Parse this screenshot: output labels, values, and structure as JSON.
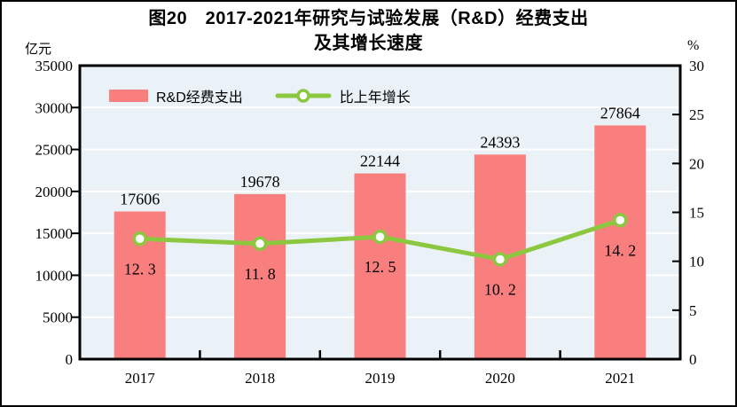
{
  "figure": {
    "title_line1": "图20　2017-2021年研究与试验发展（R&D）经费支出",
    "title_line2": "及其增长速度",
    "left_axis_unit": "亿元",
    "right_axis_unit": "%"
  },
  "legend": {
    "bar_label": "R&D经费支出",
    "line_label": "比上年增长"
  },
  "colors": {
    "bar": "#F97F7F",
    "line": "#8CC83F",
    "marker_fill": "#FFFFFF",
    "plot_bg": "#EAF1F7",
    "gridline": "#FFFFFF",
    "axis": "#000000",
    "text": "#000000",
    "page_bg": "#FFFFFF"
  },
  "chart_data": {
    "type": "bar+line",
    "title": "图20　2017-2021年研究与试验发展（R&D）经费支出及其增长速度",
    "categories": [
      "2017",
      "2018",
      "2019",
      "2020",
      "2021"
    ],
    "series": [
      {
        "name": "R&D经费支出",
        "type": "bar",
        "axis": "left",
        "values": [
          17606,
          19678,
          22144,
          24393,
          27864
        ],
        "labels": [
          "17606",
          "19678",
          "22144",
          "24393",
          "27864"
        ]
      },
      {
        "name": "比上年增长",
        "type": "line",
        "axis": "right",
        "values": [
          12.3,
          11.8,
          12.5,
          10.2,
          14.2
        ],
        "labels": [
          "12. 3",
          "11. 8",
          "12. 5",
          "10. 2",
          "14. 2"
        ]
      }
    ],
    "left_axis": {
      "min": 0,
      "max": 35000,
      "step": 5000,
      "ticks": [
        "0",
        "5000",
        "10000",
        "15000",
        "20000",
        "25000",
        "30000",
        "35000"
      ]
    },
    "right_axis": {
      "min": 0,
      "max": 30,
      "step": 5,
      "ticks": [
        "0",
        "5",
        "10",
        "15",
        "20",
        "25",
        "30"
      ]
    },
    "grid": true,
    "legend_position": "top-left-inside"
  }
}
